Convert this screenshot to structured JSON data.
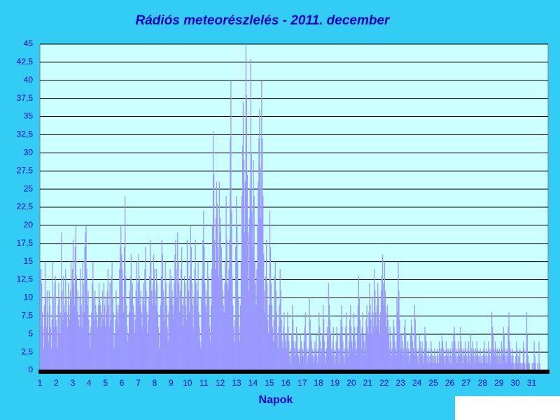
{
  "chart_data": {
    "type": "bar",
    "title": "Rádiós meteorészlelés - 2011. december",
    "x_label": "Napok",
    "categories": [
      "1",
      "2",
      "3",
      "4",
      "5",
      "6",
      "7",
      "8",
      "9",
      "10",
      "11",
      "12",
      "13",
      "14",
      "15",
      "16",
      "17",
      "18",
      "19",
      "20",
      "21",
      "22",
      "23",
      "24",
      "25",
      "26",
      "27",
      "28",
      "29",
      "30",
      "31"
    ],
    "values": [
      [
        14,
        14,
        12,
        8,
        6,
        3,
        9,
        15,
        10,
        6,
        11,
        8,
        4,
        11,
        9,
        6,
        3,
        7,
        15,
        10,
        6,
        12,
        13,
        7
      ],
      [
        6,
        3,
        9,
        12,
        10,
        5,
        8,
        19,
        11,
        7,
        13,
        9,
        8,
        14,
        10,
        8,
        6,
        12,
        9,
        7,
        11,
        15,
        10,
        14
      ],
      [
        18,
        12,
        9,
        17,
        20,
        13,
        8,
        11,
        7,
        6,
        10,
        14,
        9,
        6,
        15,
        12,
        8,
        17,
        19,
        20,
        14,
        9,
        11,
        7
      ],
      [
        5,
        3,
        6,
        8,
        12,
        15,
        10,
        7,
        11,
        9,
        8,
        7,
        6,
        9,
        12,
        10,
        9,
        6,
        8,
        11,
        7,
        12,
        9,
        6
      ],
      [
        10,
        8,
        11,
        14,
        9,
        6,
        12,
        7,
        13,
        15,
        10,
        8,
        3,
        5,
        7,
        11,
        9,
        8,
        6,
        9,
        14,
        17,
        20,
        16
      ],
      [
        14,
        10,
        8,
        17,
        24,
        13,
        9,
        6,
        4,
        5,
        8,
        11,
        13,
        16,
        10,
        12,
        9,
        8,
        5,
        7,
        11,
        15,
        10,
        12
      ],
      [
        16,
        13,
        9,
        11,
        8,
        6,
        10,
        12,
        9,
        14,
        17,
        11,
        8,
        5,
        7,
        10,
        13,
        18,
        15,
        11,
        9,
        12,
        16,
        14
      ],
      [
        11,
        9,
        14,
        12,
        8,
        6,
        3,
        5,
        9,
        13,
        18,
        16,
        11,
        7,
        10,
        15,
        12,
        9,
        6,
        4,
        8,
        12,
        14,
        10
      ],
      [
        13,
        11,
        9,
        7,
        12,
        16,
        18,
        14,
        10,
        19,
        15,
        12,
        8,
        11,
        14,
        17,
        9,
        6,
        10,
        13,
        12,
        9,
        7,
        18
      ],
      [
        15,
        11,
        8,
        13,
        20,
        17,
        12,
        9,
        6,
        10,
        14,
        18,
        12,
        9,
        11,
        15,
        8,
        6,
        4,
        3,
        10,
        13,
        18,
        22
      ],
      [
        17,
        12,
        9,
        8,
        11,
        15,
        13,
        10,
        6,
        4,
        9,
        14,
        20,
        33,
        27,
        18,
        14,
        21,
        26,
        23,
        17,
        13,
        26,
        19
      ],
      [
        21,
        17,
        13,
        11,
        9,
        8,
        12,
        15,
        24,
        18,
        12,
        11,
        14,
        18,
        32,
        40,
        22,
        13,
        9,
        6,
        4,
        7,
        17,
        24
      ],
      [
        20,
        15,
        10,
        6,
        4,
        9,
        15,
        24,
        31,
        37,
        29,
        19,
        26,
        45,
        38,
        27,
        19,
        11,
        21,
        25,
        43,
        30,
        22,
        17
      ],
      [
        29,
        24,
        15,
        12,
        9,
        14,
        20,
        26,
        32,
        36,
        28,
        21,
        40,
        32,
        24,
        16,
        11,
        8,
        13,
        18,
        12,
        7,
        5,
        9
      ],
      [
        22,
        17,
        12,
        9,
        6,
        4,
        7,
        13,
        15,
        11,
        8,
        5,
        3,
        6,
        9,
        14,
        11,
        7,
        4,
        3,
        6,
        8,
        5,
        4
      ],
      [
        3,
        5,
        8,
        6,
        4,
        2,
        1,
        3,
        5,
        9,
        7,
        4,
        3,
        2,
        4,
        6,
        5,
        3,
        2,
        1,
        3,
        5,
        4,
        2
      ],
      [
        3,
        2,
        4,
        6,
        8,
        5,
        3,
        1,
        2,
        3,
        10,
        7,
        5,
        4,
        2,
        3,
        1,
        2,
        4,
        3,
        5,
        2,
        1,
        3
      ],
      [
        8,
        6,
        4,
        2,
        3,
        5,
        9,
        7,
        4,
        2,
        1,
        3,
        6,
        4,
        12,
        9,
        7,
        5,
        3,
        2,
        4,
        6,
        3,
        1
      ],
      [
        2,
        4,
        6,
        5,
        3,
        1,
        3,
        5,
        7,
        9,
        6,
        4,
        2,
        1,
        3,
        6,
        8,
        5,
        3,
        2,
        4,
        7,
        9,
        6
      ],
      [
        4,
        3,
        5,
        8,
        6,
        4,
        2,
        3,
        6,
        9,
        13,
        10,
        7,
        5,
        3,
        6,
        8,
        5,
        4,
        2,
        5,
        7,
        9,
        6
      ],
      [
        5,
        8,
        12,
        9,
        7,
        5,
        10,
        8,
        6,
        14,
        11,
        8,
        6,
        9,
        12,
        10,
        7,
        5,
        8,
        11,
        13,
        16,
        12,
        9
      ],
      [
        15,
        11,
        8,
        6,
        9,
        7,
        5,
        3,
        6,
        4,
        2,
        3,
        5,
        7,
        6,
        4,
        3,
        2,
        10,
        8,
        15,
        11,
        7,
        5
      ],
      [
        3,
        5,
        4,
        2,
        3,
        6,
        7,
        5,
        3,
        2,
        4,
        3,
        1,
        2,
        5,
        7,
        6,
        4,
        3,
        2,
        9,
        7,
        5,
        3
      ],
      [
        2,
        1,
        3,
        5,
        4,
        2,
        3,
        4,
        2,
        1,
        3,
        6,
        5,
        4,
        2,
        1,
        3,
        2,
        1,
        2,
        4,
        3,
        2,
        1
      ],
      [
        2,
        3,
        1,
        2,
        1,
        3,
        2,
        1,
        4,
        3,
        2,
        3,
        5,
        4,
        3,
        2,
        1,
        2,
        4,
        3,
        2,
        3,
        2,
        1
      ],
      [
        3,
        2,
        1,
        4,
        3,
        5,
        6,
        4,
        2,
        3,
        1,
        2,
        4,
        3,
        2,
        6,
        4,
        3,
        2,
        1,
        3,
        2,
        4,
        3
      ],
      [
        2,
        1,
        3,
        4,
        2,
        1,
        5,
        3,
        2,
        4,
        3,
        2,
        1,
        3,
        2,
        4,
        3,
        2,
        1,
        2,
        3,
        1,
        2,
        1
      ],
      [
        2,
        3,
        4,
        2,
        1,
        3,
        2,
        1,
        4,
        3,
        2,
        1,
        3,
        8,
        6,
        5,
        3,
        2,
        4,
        3,
        2,
        3,
        1,
        2
      ],
      [
        3,
        2,
        1,
        4,
        3,
        2,
        6,
        5,
        3,
        2,
        1,
        3,
        2,
        6,
        8,
        4,
        3,
        2,
        1,
        3,
        2,
        1,
        0,
        1
      ],
      [
        2,
        4,
        3,
        1,
        2,
        1,
        3,
        1,
        1,
        0,
        1,
        4,
        3,
        1,
        0,
        1,
        8,
        5,
        2,
        1,
        1,
        0,
        0,
        0
      ],
      [
        1,
        0,
        1,
        4,
        2,
        1,
        0,
        0,
        1,
        0,
        4,
        1,
        0,
        0,
        0,
        0,
        0,
        0,
        0,
        0,
        0,
        0,
        0,
        0
      ]
    ],
    "color": "#9999ff",
    "ylim": [
      0,
      45
    ],
    "yticks": [
      0,
      {
        "value": 2.5,
        "label": "2,5"
      },
      5,
      {
        "value": 7.5,
        "label": "7,5"
      },
      10,
      {
        "value": 12.5,
        "label": "12,5"
      },
      15,
      {
        "value": 17.5,
        "label": "17,5"
      },
      20,
      {
        "value": 22.5,
        "label": "22,5"
      },
      25,
      {
        "value": 27.5,
        "label": "27,5"
      },
      30,
      {
        "value": 32.5,
        "label": "32,5"
      },
      35,
      {
        "value": 37.5,
        "label": "37,5"
      },
      40,
      {
        "value": 42.5,
        "label": "42,5"
      },
      45
    ],
    "grid": true
  }
}
